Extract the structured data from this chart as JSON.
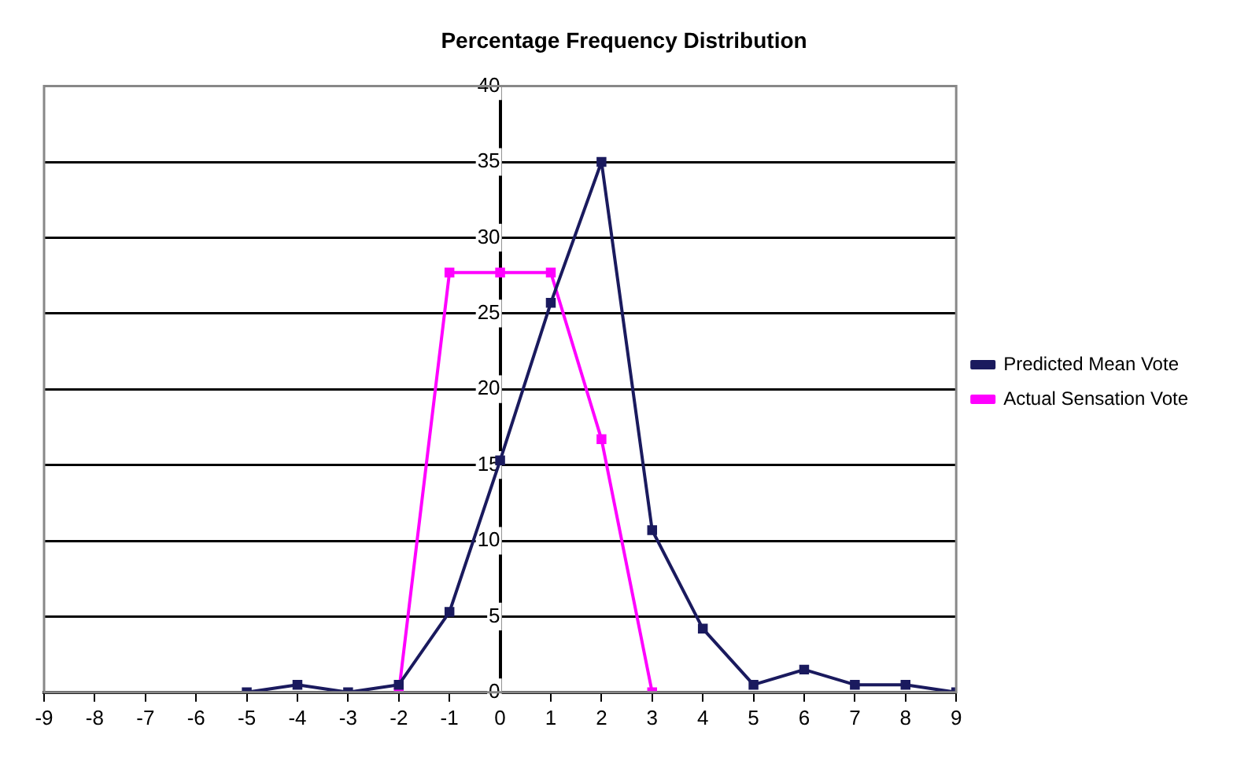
{
  "chart_data": {
    "type": "line",
    "title": "Percentage Frequency Distribution",
    "xlim": [
      -9,
      9
    ],
    "xticks": [
      -9,
      -8,
      -7,
      -6,
      -5,
      -4,
      -3,
      -2,
      -1,
      0,
      1,
      2,
      3,
      4,
      5,
      6,
      7,
      8,
      9
    ],
    "ylim": [
      0,
      40
    ],
    "yticks": [
      0,
      5,
      10,
      15,
      20,
      25,
      30,
      35,
      40
    ],
    "grid": "y",
    "legend": "right",
    "marker": "square",
    "line_style": "solid",
    "series": [
      {
        "name": "Predicted Mean Vote",
        "color": "#1a1a5e",
        "x": [
          -5,
          -4,
          -3,
          -2,
          -1,
          0,
          1,
          2,
          3,
          4,
          5,
          6,
          7,
          8,
          9
        ],
        "values": [
          0,
          0.5,
          0,
          0.5,
          5.3,
          15.3,
          25.7,
          35,
          10.7,
          4.2,
          0.5,
          1.5,
          0.5,
          0.5,
          0
        ]
      },
      {
        "name": "Actual Sensation Vote",
        "color": "#ff00ff",
        "x": [
          -2,
          -1,
          0,
          1,
          2,
          3
        ],
        "values": [
          0,
          27.7,
          27.7,
          27.7,
          16.7,
          0
        ]
      }
    ]
  }
}
